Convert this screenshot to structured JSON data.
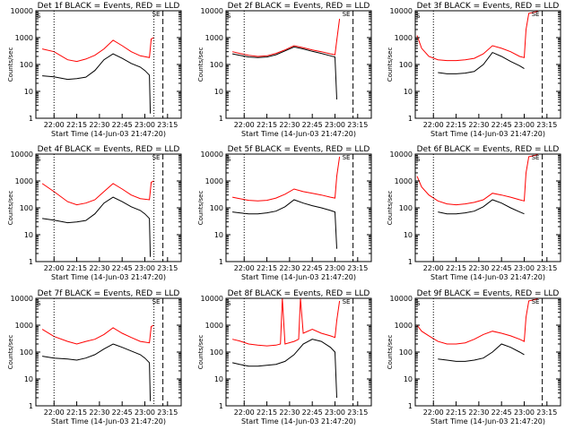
{
  "figure": {
    "ylabel": "Counts/sec",
    "start_time_label": "Start Time (14-Jun-03 21:47:20)",
    "x_tick_labels": [
      "22:00",
      "22:15",
      "22:30",
      "22:45",
      "23:00",
      "23:15"
    ],
    "y_tick_labels": [
      "1",
      "10",
      "100",
      "1000",
      "10000"
    ],
    "legend_suffix": " BLACK = Events, RED = LLD",
    "corner_marker": "S",
    "top_marker": "SE"
  },
  "chart_data": [
    {
      "type": "line",
      "title": "Det 1f BLACK = Events, RED = LLD",
      "xlabel": "Start Time (14-Jun-03 21:47:20)",
      "ylabel": "Counts/sec",
      "xlim": [
        21.8,
        23.4
      ],
      "ylim": [
        1,
        10000
      ],
      "yscale": "log",
      "x_ticks": [
        "22:00",
        "22:15",
        "22:30",
        "22:45",
        "23:00",
        "23:15"
      ],
      "vlines": {
        "dotted": [
          22.0,
          23.1
        ],
        "dashed": [
          23.1
        ]
      },
      "series": [
        {
          "name": "LLD",
          "color": "#ff0000",
          "x": [
            21.87,
            22.0,
            22.15,
            22.25,
            22.35,
            22.45,
            22.55,
            22.65,
            22.75,
            22.85,
            22.95,
            23.05,
            23.07,
            23.1
          ],
          "values": [
            380,
            300,
            150,
            130,
            160,
            220,
            380,
            800,
            500,
            300,
            210,
            180,
            900,
            1000
          ]
        },
        {
          "name": "Events",
          "color": "#000000",
          "x": [
            21.87,
            22.0,
            22.15,
            22.25,
            22.35,
            22.45,
            22.55,
            22.65,
            22.75,
            22.85,
            22.95,
            23.0,
            23.05,
            23.06
          ],
          "values": [
            38,
            35,
            28,
            30,
            34,
            60,
            150,
            250,
            170,
            110,
            80,
            60,
            40,
            1.5
          ]
        }
      ]
    },
    {
      "type": "line",
      "title": "Det 2f BLACK = Events, RED = LLD",
      "xlabel": "Start Time (14-Jun-03 21:47:20)",
      "ylabel": "Counts/sec",
      "xlim": [
        21.8,
        23.4
      ],
      "ylim": [
        1,
        10000
      ],
      "yscale": "log",
      "x_ticks": [
        "22:00",
        "22:15",
        "22:30",
        "22:45",
        "23:00",
        "23:15"
      ],
      "vlines": {
        "dotted": [
          22.0
        ],
        "dashed": [
          23.1
        ]
      },
      "series": [
        {
          "name": "LLD",
          "color": "#ff0000",
          "x": [
            21.87,
            21.95,
            22.05,
            22.15,
            22.25,
            22.35,
            22.45,
            22.55,
            22.65,
            22.75,
            22.85,
            22.95,
            23.0,
            23.02,
            23.05
          ],
          "values": [
            300,
            260,
            220,
            200,
            210,
            260,
            350,
            500,
            420,
            350,
            300,
            250,
            230,
            800,
            5000
          ]
        },
        {
          "name": "Events",
          "color": "#000000",
          "x": [
            21.87,
            21.95,
            22.05,
            22.15,
            22.25,
            22.35,
            22.45,
            22.55,
            22.65,
            22.75,
            22.85,
            22.95,
            23.0,
            23.02
          ],
          "values": [
            250,
            220,
            190,
            180,
            190,
            230,
            320,
            450,
            380,
            310,
            260,
            210,
            190,
            5
          ]
        }
      ]
    },
    {
      "type": "line",
      "title": "Det 3f BLACK = Events, RED = LLD",
      "xlabel": "Start Time (14-Jun-03 21:47:20)",
      "ylabel": "Counts/sec",
      "xlim": [
        21.8,
        23.4
      ],
      "ylim": [
        1,
        10000
      ],
      "yscale": "log",
      "x_ticks": [
        "22:00",
        "22:15",
        "22:30",
        "22:45",
        "23:00",
        "23:15"
      ],
      "vlines": {
        "dotted": [
          22.0
        ],
        "dashed": [
          23.1
        ]
      },
      "series": [
        {
          "name": "LLD",
          "color": "#ff0000",
          "x": [
            21.82,
            21.87,
            21.95,
            22.05,
            22.15,
            22.25,
            22.35,
            22.45,
            22.55,
            22.65,
            22.75,
            22.85,
            22.95,
            23.0,
            23.02,
            23.05,
            23.15
          ],
          "values": [
            1200,
            400,
            200,
            150,
            140,
            140,
            150,
            170,
            250,
            500,
            400,
            300,
            200,
            180,
            2000,
            8000,
            9500
          ]
        },
        {
          "name": "Events",
          "color": "#000000",
          "x": [
            22.05,
            22.15,
            22.25,
            22.35,
            22.45,
            22.55,
            22.65,
            22.75,
            22.85,
            22.95,
            23.0
          ],
          "values": [
            50,
            45,
            45,
            48,
            55,
            100,
            280,
            200,
            130,
            90,
            70
          ]
        }
      ]
    },
    {
      "type": "line",
      "title": "Det 4f BLACK = Events, RED = LLD",
      "xlabel": "Start Time (14-Jun-03 21:47:20)",
      "ylabel": "Counts/sec",
      "xlim": [
        21.8,
        23.4
      ],
      "ylim": [
        1,
        10000
      ],
      "yscale": "log",
      "x_ticks": [
        "22:00",
        "22:15",
        "22:30",
        "22:45",
        "23:00",
        "23:15"
      ],
      "vlines": {
        "dotted": [
          22.0,
          23.1
        ],
        "dashed": [
          23.1
        ]
      },
      "series": [
        {
          "name": "LLD",
          "color": "#ff0000",
          "x": [
            21.87,
            22.0,
            22.15,
            22.25,
            22.35,
            22.45,
            22.55,
            22.65,
            22.75,
            22.85,
            22.95,
            23.05,
            23.07,
            23.1
          ],
          "values": [
            800,
            400,
            170,
            130,
            150,
            200,
            400,
            800,
            500,
            300,
            220,
            200,
            900,
            1000
          ]
        },
        {
          "name": "Events",
          "color": "#000000",
          "x": [
            21.87,
            22.0,
            22.15,
            22.25,
            22.35,
            22.45,
            22.55,
            22.65,
            22.75,
            22.85,
            22.95,
            23.0,
            23.05,
            23.06
          ],
          "values": [
            40,
            35,
            28,
            30,
            34,
            60,
            150,
            250,
            170,
            110,
            80,
            60,
            40,
            1.5
          ]
        }
      ]
    },
    {
      "type": "line",
      "title": "Det 5f BLACK = Events, RED = LLD",
      "xlabel": "Start Time (14-Jun-03 21:47:20)",
      "ylabel": "Counts/sec",
      "xlim": [
        21.8,
        23.4
      ],
      "ylim": [
        1,
        10000
      ],
      "yscale": "log",
      "x_ticks": [
        "22:00",
        "22:15",
        "22:30",
        "22:45",
        "23:00",
        "23:15"
      ],
      "vlines": {
        "dotted": [
          22.0
        ],
        "dashed": [
          23.1
        ]
      },
      "series": [
        {
          "name": "LLD",
          "color": "#ff0000",
          "x": [
            21.87,
            21.95,
            22.05,
            22.15,
            22.25,
            22.35,
            22.45,
            22.55,
            22.65,
            22.75,
            22.85,
            22.95,
            23.0,
            23.02,
            23.05
          ],
          "values": [
            250,
            220,
            190,
            180,
            190,
            230,
            320,
            500,
            400,
            350,
            300,
            250,
            230,
            1500,
            8000
          ]
        },
        {
          "name": "Events",
          "color": "#000000",
          "x": [
            21.87,
            21.95,
            22.05,
            22.15,
            22.25,
            22.35,
            22.45,
            22.55,
            22.65,
            22.75,
            22.85,
            22.95,
            23.0,
            23.02
          ],
          "values": [
            70,
            65,
            60,
            60,
            65,
            75,
            110,
            200,
            150,
            120,
            100,
            80,
            70,
            3
          ]
        }
      ]
    },
    {
      "type": "line",
      "title": "Det 6f BLACK = Events, RED = LLD",
      "xlabel": "Start Time (14-Jun-03 21:47:20)",
      "ylabel": "Counts/sec",
      "xlim": [
        21.8,
        23.4
      ],
      "ylim": [
        1,
        10000
      ],
      "yscale": "log",
      "x_ticks": [
        "22:00",
        "22:15",
        "22:30",
        "22:45",
        "23:00",
        "23:15"
      ],
      "vlines": {
        "dotted": [
          22.0
        ],
        "dashed": [
          23.1
        ]
      },
      "series": [
        {
          "name": "LLD",
          "color": "#ff0000",
          "x": [
            21.82,
            21.87,
            21.95,
            22.05,
            22.15,
            22.25,
            22.35,
            22.45,
            22.55,
            22.65,
            22.75,
            22.85,
            22.95,
            23.0,
            23.02,
            23.05,
            23.15
          ],
          "values": [
            1500,
            600,
            300,
            180,
            140,
            130,
            140,
            160,
            200,
            350,
            300,
            250,
            200,
            180,
            2000,
            8000,
            9500
          ]
        },
        {
          "name": "Events",
          "color": "#000000",
          "x": [
            22.05,
            22.15,
            22.25,
            22.35,
            22.45,
            22.55,
            22.65,
            22.75,
            22.85,
            22.95,
            23.0
          ],
          "values": [
            70,
            60,
            60,
            65,
            75,
            110,
            200,
            150,
            100,
            70,
            60
          ]
        }
      ]
    },
    {
      "type": "line",
      "title": "Det 7f BLACK = Events, RED = LLD",
      "xlabel": "Start Time (14-Jun-03 21:47:20)",
      "ylabel": "Counts/sec",
      "xlim": [
        21.8,
        23.4
      ],
      "ylim": [
        1,
        10000
      ],
      "yscale": "log",
      "x_ticks": [
        "22:00",
        "22:15",
        "22:30",
        "22:45",
        "23:00",
        "23:15"
      ],
      "vlines": {
        "dotted": [
          22.0,
          23.1
        ],
        "dashed": [
          23.1
        ]
      },
      "series": [
        {
          "name": "LLD",
          "color": "#ff0000",
          "x": [
            21.87,
            22.0,
            22.15,
            22.25,
            22.35,
            22.45,
            22.55,
            22.65,
            22.75,
            22.85,
            22.95,
            23.05,
            23.07,
            23.1
          ],
          "values": [
            700,
            380,
            250,
            200,
            250,
            300,
            450,
            800,
            500,
            350,
            250,
            220,
            900,
            1000
          ]
        },
        {
          "name": "Events",
          "color": "#000000",
          "x": [
            21.87,
            22.0,
            22.15,
            22.25,
            22.35,
            22.45,
            22.55,
            22.65,
            22.75,
            22.85,
            22.95,
            23.0,
            23.05,
            23.06
          ],
          "values": [
            70,
            60,
            55,
            50,
            60,
            80,
            130,
            200,
            150,
            110,
            80,
            60,
            40,
            1.5
          ]
        }
      ]
    },
    {
      "type": "line",
      "title": "Det 8f BLACK = Events, RED = LLD",
      "xlabel": "Start Time (14-Jun-03 21:47:20)",
      "ylabel": "Counts/sec",
      "xlim": [
        21.8,
        23.4
      ],
      "ylim": [
        1,
        10000
      ],
      "yscale": "log",
      "x_ticks": [
        "22:00",
        "22:15",
        "22:30",
        "22:45",
        "23:00",
        "23:15"
      ],
      "vlines": {
        "dotted": [
          22.0
        ],
        "dashed": [
          23.1
        ]
      },
      "series": [
        {
          "name": "LLD",
          "color": "#ff0000",
          "x": [
            21.87,
            21.95,
            22.05,
            22.15,
            22.25,
            22.35,
            22.4,
            22.42,
            22.45,
            22.55,
            22.6,
            22.62,
            22.65,
            22.75,
            22.85,
            22.95,
            23.0,
            23.02,
            23.05
          ],
          "values": [
            300,
            260,
            200,
            180,
            170,
            180,
            200,
            10000,
            200,
            250,
            300,
            10000,
            500,
            700,
            500,
            400,
            350,
            1500,
            8000
          ]
        },
        {
          "name": "Events",
          "color": "#000000",
          "x": [
            21.87,
            21.95,
            22.05,
            22.15,
            22.25,
            22.35,
            22.45,
            22.55,
            22.65,
            22.75,
            22.85,
            22.95,
            23.0,
            23.02
          ],
          "values": [
            40,
            35,
            30,
            30,
            32,
            35,
            45,
            80,
            200,
            300,
            250,
            150,
            100,
            2
          ]
        }
      ]
    },
    {
      "type": "line",
      "title": "Det 9f BLACK = Events, RED = LLD",
      "xlabel": "Start Time (14-Jun-03 21:47:20)",
      "ylabel": "Counts/sec",
      "xlim": [
        21.8,
        23.4
      ],
      "ylim": [
        1,
        10000
      ],
      "yscale": "log",
      "x_ticks": [
        "22:00",
        "22:15",
        "22:30",
        "22:45",
        "23:00",
        "23:15"
      ],
      "vlines": {
        "dotted": [
          22.0
        ],
        "dashed": [
          23.1
        ]
      },
      "series": [
        {
          "name": "LLD",
          "color": "#ff0000",
          "x": [
            21.82,
            21.87,
            21.95,
            22.05,
            22.15,
            22.25,
            22.35,
            22.45,
            22.55,
            22.65,
            22.75,
            22.85,
            22.95,
            23.0,
            23.02,
            23.05,
            23.15
          ],
          "values": [
            1000,
            600,
            400,
            250,
            200,
            200,
            220,
            300,
            450,
            600,
            500,
            400,
            300,
            250,
            2000,
            8000,
            9500
          ]
        },
        {
          "name": "Events",
          "color": "#000000",
          "x": [
            22.05,
            22.15,
            22.25,
            22.35,
            22.45,
            22.55,
            22.65,
            22.75,
            22.85,
            22.95,
            23.0
          ],
          "values": [
            55,
            50,
            45,
            45,
            50,
            60,
            100,
            200,
            150,
            100,
            80
          ]
        }
      ]
    }
  ]
}
